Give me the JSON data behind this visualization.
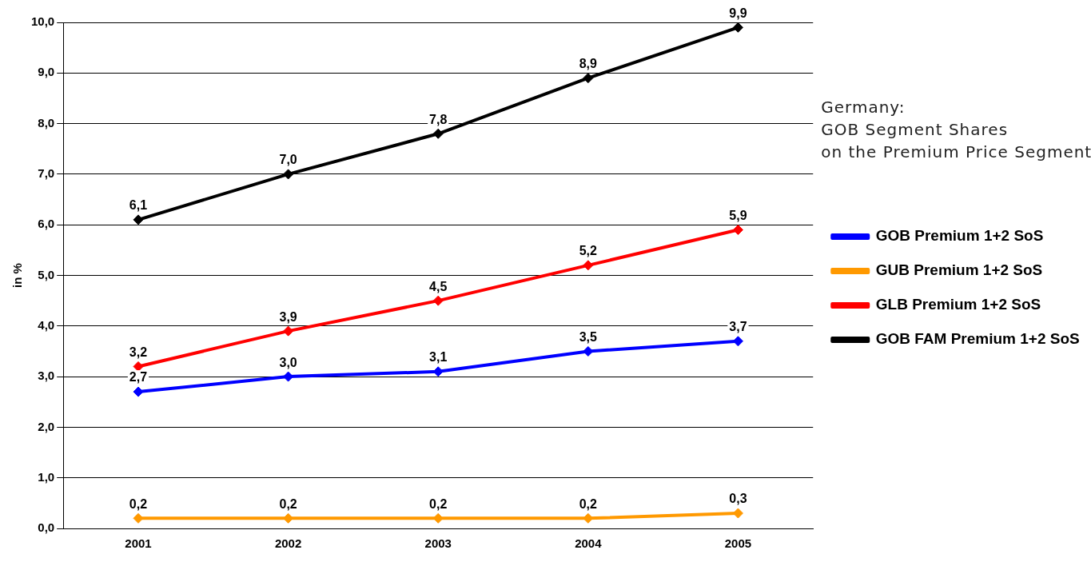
{
  "chart_data": {
    "type": "line",
    "title": "Germany:\nGOB Segment Shares\non the Premium Price Segment",
    "ylabel": "in %",
    "categories": [
      "2001",
      "2002",
      "2003",
      "2004",
      "2005"
    ],
    "series": [
      {
        "name": "GOB Premium 1+2 SoS",
        "color": "#0000ff",
        "values": [
          2.7,
          3.0,
          3.1,
          3.5,
          3.7
        ],
        "value_labels": [
          "2,7",
          "3,0",
          "3,1",
          "3,5",
          "3,7"
        ]
      },
      {
        "name": "GUB Premium 1+2 SoS",
        "color": "#ff9900",
        "values": [
          0.2,
          0.2,
          0.2,
          0.2,
          0.3
        ],
        "value_labels": [
          "0,2",
          "0,2",
          "0,2",
          "0,2",
          "0,3"
        ]
      },
      {
        "name": "GLB Premium 1+2 SoS",
        "color": "#ff0000",
        "values": [
          3.2,
          3.9,
          4.5,
          5.2,
          5.9
        ],
        "value_labels": [
          "3,2",
          "3,9",
          "4,5",
          "5,2",
          "5,9"
        ]
      },
      {
        "name": "GOB FAM Premium 1+2 SoS",
        "color": "#000000",
        "values": [
          6.1,
          7.0,
          7.8,
          8.9,
          9.9
        ],
        "value_labels": [
          "6,1",
          "7,0",
          "7,8",
          "8,9",
          "9,9"
        ]
      }
    ],
    "ylim": [
      0,
      10
    ],
    "yticks": [
      {
        "value": 0,
        "label": "0,0"
      },
      {
        "value": 1,
        "label": "1,0"
      },
      {
        "value": 2,
        "label": "2,0"
      },
      {
        "value": 3,
        "label": "3,0"
      },
      {
        "value": 4,
        "label": "4,0"
      },
      {
        "value": 5,
        "label": "5,0"
      },
      {
        "value": 6,
        "label": "6,0"
      },
      {
        "value": 7,
        "label": "7,0"
      },
      {
        "value": 8,
        "label": "8,0"
      },
      {
        "value": 9,
        "label": "9,0"
      },
      {
        "value": 10,
        "label": "10,0"
      }
    ],
    "grid": "y",
    "legend": "right",
    "marker": "diamond",
    "line_style": "solid"
  }
}
